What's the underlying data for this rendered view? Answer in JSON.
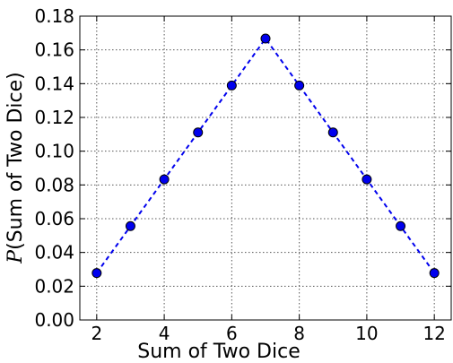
{
  "chart_data": {
    "type": "line",
    "title": "",
    "xlabel": "Sum of Two Dice",
    "ylabel_symbol": "P",
    "ylabel_paren": "(Sum of Two Dice)",
    "xlim": [
      1.5,
      12.5
    ],
    "ylim": [
      0.0,
      0.18
    ],
    "xticks": [
      2,
      4,
      6,
      8,
      10,
      12
    ],
    "xtick_labels": [
      "2",
      "4",
      "6",
      "8",
      "10",
      "12"
    ],
    "yticks": [
      0.0,
      0.02,
      0.04,
      0.06,
      0.08,
      0.1,
      0.12,
      0.14,
      0.16,
      0.18
    ],
    "ytick_labels": [
      "0.00",
      "0.02",
      "0.04",
      "0.06",
      "0.08",
      "0.10",
      "0.12",
      "0.14",
      "0.16",
      "0.18"
    ],
    "grid": true,
    "series": [
      {
        "x": [
          2,
          3,
          4,
          5,
          6,
          7,
          8,
          9,
          10,
          11,
          12
        ],
        "y": [
          0.0278,
          0.0556,
          0.0833,
          0.1111,
          0.1389,
          0.1667,
          0.1389,
          0.1111,
          0.0833,
          0.0556,
          0.0278
        ],
        "color": "#0000ee",
        "line_style": "dashed",
        "marker": "circle"
      }
    ]
  }
}
